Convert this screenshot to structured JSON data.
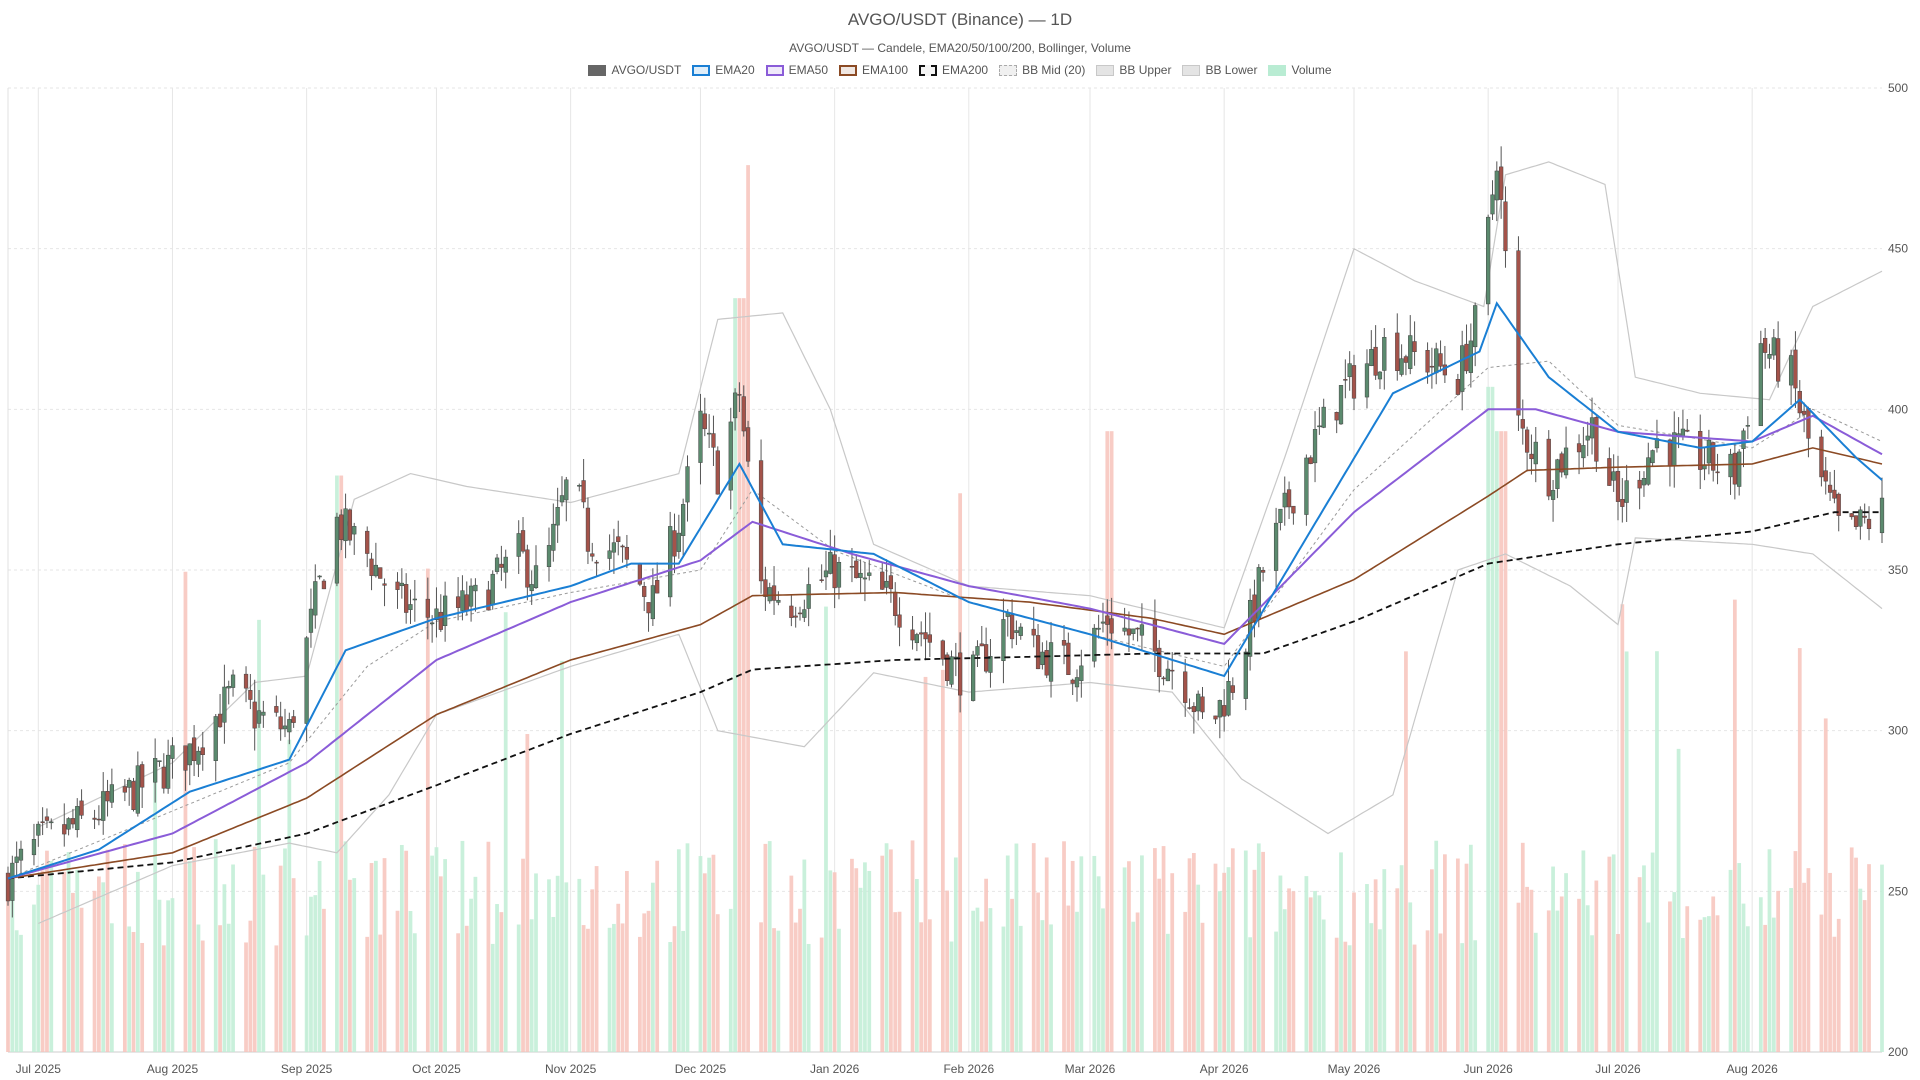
{
  "chart_data": {
    "type": "candlestick",
    "title": "AVGO/USDT (Binance) — 1D",
    "subtitle": "AVGO/USDT — Candele, EMA20/50/100/200, Bollinger, Volume",
    "legend": [
      {
        "name": "AVGO/USDT",
        "color": "#666666",
        "style": "fill"
      },
      {
        "name": "EMA20",
        "color": "#1a7fd4",
        "style": "line"
      },
      {
        "name": "EMA50",
        "color": "#8a5cd8",
        "style": "line"
      },
      {
        "name": "EMA100",
        "color": "#8b4a24",
        "style": "line"
      },
      {
        "name": "EMA200",
        "color": "#111111",
        "style": "dashed"
      },
      {
        "name": "BB Mid (20)",
        "color": "#aaaaaa",
        "style": "dotted"
      },
      {
        "name": "BB Upper",
        "color": "#c8c8c8",
        "style": "light"
      },
      {
        "name": "BB Lower",
        "color": "#c8c8c8",
        "style": "light"
      },
      {
        "name": "Volume",
        "color": "#b9ecd3",
        "style": "fill"
      }
    ],
    "y_axis": {
      "min": 200,
      "max": 500,
      "ticks": [
        200,
        250,
        300,
        350,
        400,
        450,
        500
      ],
      "position": "right"
    },
    "x_axis": {
      "start": "2025-06-24",
      "end": "2026-08-31",
      "ticks": [
        {
          "label": "Jul 2025",
          "date": "2025-07-01"
        },
        {
          "label": "Aug 2025",
          "date": "2025-08-01"
        },
        {
          "label": "Sep 2025",
          "date": "2025-09-01"
        },
        {
          "label": "Oct 2025",
          "date": "2025-10-01"
        },
        {
          "label": "Nov 2025",
          "date": "2025-11-01"
        },
        {
          "label": "Dec 2025",
          "date": "2025-12-01"
        },
        {
          "label": "Jan 2026",
          "date": "2026-01-01"
        },
        {
          "label": "Feb 2026",
          "date": "2026-02-01"
        },
        {
          "label": "Mar 2026",
          "date": "2026-03-01"
        },
        {
          "label": "Apr 2026",
          "date": "2026-04-01"
        },
        {
          "label": "May 2026",
          "date": "2026-05-01"
        },
        {
          "label": "Jun 2026",
          "date": "2026-06-01"
        },
        {
          "label": "Jul 2026",
          "date": "2026-07-01"
        },
        {
          "label": "Aug 2026",
          "date": "2026-08-01"
        }
      ]
    },
    "grid": true,
    "price_keypoints": [
      [
        "2025-06-24",
        254
      ],
      [
        "2025-07-01",
        265
      ],
      [
        "2025-07-12",
        272
      ],
      [
        "2025-07-25",
        283
      ],
      [
        "2025-08-06",
        295
      ],
      [
        "2025-08-15",
        312
      ],
      [
        "2025-08-20",
        305
      ],
      [
        "2025-08-28",
        300
      ],
      [
        "2025-09-03",
        340
      ],
      [
        "2025-09-08",
        365
      ],
      [
        "2025-09-15",
        355
      ],
      [
        "2025-09-22",
        340
      ],
      [
        "2025-10-01",
        335
      ],
      [
        "2025-10-10",
        340
      ],
      [
        "2025-10-20",
        355
      ],
      [
        "2025-10-25",
        345
      ],
      [
        "2025-11-01",
        380
      ],
      [
        "2025-11-05",
        360
      ],
      [
        "2025-11-12",
        355
      ],
      [
        "2025-11-20",
        340
      ],
      [
        "2025-11-26",
        365
      ],
      [
        "2025-12-01",
        395
      ],
      [
        "2025-12-05",
        380
      ],
      [
        "2025-12-10",
        405
      ],
      [
        "2025-12-15",
        345
      ],
      [
        "2025-12-22",
        340
      ],
      [
        "2026-01-01",
        350
      ],
      [
        "2026-01-08",
        345
      ],
      [
        "2026-01-15",
        340
      ],
      [
        "2026-01-25",
        325
      ],
      [
        "2026-02-01",
        315
      ],
      [
        "2026-02-10",
        335
      ],
      [
        "2026-02-16",
        325
      ],
      [
        "2026-02-25",
        320
      ],
      [
        "2026-03-05",
        335
      ],
      [
        "2026-03-15",
        325
      ],
      [
        "2026-03-22",
        318
      ],
      [
        "2026-03-28",
        300
      ],
      [
        "2026-04-04",
        318
      ],
      [
        "2026-04-10",
        350
      ],
      [
        "2026-04-20",
        385
      ],
      [
        "2026-04-28",
        405
      ],
      [
        "2026-05-08",
        420
      ],
      [
        "2026-05-18",
        415
      ],
      [
        "2026-05-25",
        410
      ],
      [
        "2026-05-30",
        430
      ],
      [
        "2026-06-03",
        480
      ],
      [
        "2026-06-08",
        395
      ],
      [
        "2026-06-15",
        380
      ],
      [
        "2026-06-25",
        395
      ],
      [
        "2026-07-01",
        370
      ],
      [
        "2026-07-10",
        390
      ],
      [
        "2026-07-20",
        385
      ],
      [
        "2026-07-28",
        380
      ],
      [
        "2026-08-03",
        420
      ],
      [
        "2026-08-10",
        410
      ],
      [
        "2026-08-16",
        380
      ],
      [
        "2026-08-22",
        360
      ],
      [
        "2026-08-31",
        368
      ]
    ],
    "ema20_keypoints": [
      [
        "2025-06-24",
        254
      ],
      [
        "2025-07-15",
        263
      ],
      [
        "2025-08-05",
        281
      ],
      [
        "2025-08-28",
        291
      ],
      [
        "2025-09-10",
        325
      ],
      [
        "2025-10-01",
        335
      ],
      [
        "2025-11-01",
        345
      ],
      [
        "2025-11-15",
        352
      ],
      [
        "2025-11-26",
        352
      ],
      [
        "2025-12-10",
        383
      ],
      [
        "2025-12-20",
        358
      ],
      [
        "2026-01-10",
        355
      ],
      [
        "2026-02-01",
        340
      ],
      [
        "2026-03-01",
        330
      ],
      [
        "2026-04-01",
        317
      ],
      [
        "2026-04-20",
        360
      ],
      [
        "2026-05-10",
        405
      ],
      [
        "2026-05-30",
        418
      ],
      [
        "2026-06-03",
        433
      ],
      [
        "2026-06-15",
        410
      ],
      [
        "2026-07-01",
        393
      ],
      [
        "2026-07-20",
        388
      ],
      [
        "2026-08-01",
        390
      ],
      [
        "2026-08-12",
        403
      ],
      [
        "2026-08-25",
        385
      ],
      [
        "2026-08-31",
        378
      ]
    ],
    "ema50_keypoints": [
      [
        "2025-06-24",
        254
      ],
      [
        "2025-08-01",
        268
      ],
      [
        "2025-09-01",
        290
      ],
      [
        "2025-10-01",
        322
      ],
      [
        "2025-11-01",
        340
      ],
      [
        "2025-12-01",
        353
      ],
      [
        "2025-12-13",
        365
      ],
      [
        "2026-01-05",
        355
      ],
      [
        "2026-02-01",
        345
      ],
      [
        "2026-03-01",
        338
      ],
      [
        "2026-04-01",
        327
      ],
      [
        "2026-05-01",
        368
      ],
      [
        "2026-06-01",
        400
      ],
      [
        "2026-06-12",
        400
      ],
      [
        "2026-07-01",
        393
      ],
      [
        "2026-08-01",
        390
      ],
      [
        "2026-08-15",
        398
      ],
      [
        "2026-08-31",
        386
      ]
    ],
    "ema100_keypoints": [
      [
        "2025-06-24",
        254
      ],
      [
        "2025-08-01",
        262
      ],
      [
        "2025-09-01",
        279
      ],
      [
        "2025-10-01",
        305
      ],
      [
        "2025-11-01",
        322
      ],
      [
        "2025-12-01",
        333
      ],
      [
        "2025-12-13",
        342
      ],
      [
        "2026-01-15",
        343
      ],
      [
        "2026-02-15",
        340
      ],
      [
        "2026-03-15",
        335
      ],
      [
        "2026-04-01",
        330
      ],
      [
        "2026-05-01",
        347
      ],
      [
        "2026-06-01",
        373
      ],
      [
        "2026-06-10",
        381
      ],
      [
        "2026-07-01",
        382
      ],
      [
        "2026-08-01",
        383
      ],
      [
        "2026-08-15",
        388
      ],
      [
        "2026-08-31",
        383
      ]
    ],
    "ema200_keypoints": [
      [
        "2025-06-24",
        254
      ],
      [
        "2025-08-01",
        259
      ],
      [
        "2025-09-01",
        268
      ],
      [
        "2025-10-01",
        283
      ],
      [
        "2025-11-01",
        299
      ],
      [
        "2025-12-01",
        312
      ],
      [
        "2025-12-13",
        319
      ],
      [
        "2026-01-15",
        322
      ],
      [
        "2026-02-15",
        323
      ],
      [
        "2026-03-15",
        324
      ],
      [
        "2026-04-10",
        324
      ],
      [
        "2026-05-01",
        334
      ],
      [
        "2026-06-01",
        352
      ],
      [
        "2026-07-01",
        358
      ],
      [
        "2026-08-01",
        362
      ],
      [
        "2026-08-20",
        368
      ],
      [
        "2026-08-31",
        368
      ]
    ],
    "bb_mid_keypoints": [
      [
        "2025-06-24",
        254
      ],
      [
        "2025-08-01",
        275
      ],
      [
        "2025-08-28",
        290
      ],
      [
        "2025-09-15",
        320
      ],
      [
        "2025-10-01",
        334
      ],
      [
        "2025-11-01",
        343
      ],
      [
        "2025-12-01",
        350
      ],
      [
        "2025-12-13",
        375
      ],
      [
        "2026-01-01",
        356
      ],
      [
        "2026-02-01",
        340
      ],
      [
        "2026-03-01",
        330
      ],
      [
        "2026-04-01",
        320
      ],
      [
        "2026-05-01",
        375
      ],
      [
        "2026-06-01",
        413
      ],
      [
        "2026-06-15",
        415
      ],
      [
        "2026-07-01",
        395
      ],
      [
        "2026-08-01",
        388
      ],
      [
        "2026-08-15",
        400
      ],
      [
        "2026-08-31",
        390
      ]
    ],
    "bb_upper_keypoints": [
      [
        "2025-07-01",
        270
      ],
      [
        "2025-08-01",
        290
      ],
      [
        "2025-08-20",
        315
      ],
      [
        "2025-09-01",
        317
      ],
      [
        "2025-09-12",
        372
      ],
      [
        "2025-09-25",
        380
      ],
      [
        "2025-10-08",
        376
      ],
      [
        "2025-11-01",
        371
      ],
      [
        "2025-11-26",
        380
      ],
      [
        "2025-12-05",
        428
      ],
      [
        "2025-12-20",
        430
      ],
      [
        "2025-12-31",
        400
      ],
      [
        "2026-01-10",
        358
      ],
      [
        "2026-02-01",
        345
      ],
      [
        "2026-03-01",
        342
      ],
      [
        "2026-04-01",
        332
      ],
      [
        "2026-04-15",
        385
      ],
      [
        "2026-05-01",
        450
      ],
      [
        "2026-05-15",
        440
      ],
      [
        "2026-05-31",
        432
      ],
      [
        "2026-06-05",
        473
      ],
      [
        "2026-06-15",
        477
      ],
      [
        "2026-06-28",
        470
      ],
      [
        "2026-07-05",
        410
      ],
      [
        "2026-07-20",
        405
      ],
      [
        "2026-08-05",
        403
      ],
      [
        "2026-08-15",
        432
      ],
      [
        "2026-08-31",
        443
      ]
    ],
    "bb_lower_keypoints": [
      [
        "2025-07-01",
        240
      ],
      [
        "2025-08-01",
        258
      ],
      [
        "2025-08-28",
        265
      ],
      [
        "2025-09-08",
        262
      ],
      [
        "2025-09-20",
        280
      ],
      [
        "2025-10-01",
        305
      ],
      [
        "2025-11-01",
        320
      ],
      [
        "2025-11-26",
        330
      ],
      [
        "2025-12-05",
        300
      ],
      [
        "2025-12-25",
        295
      ],
      [
        "2026-01-10",
        318
      ],
      [
        "2026-02-01",
        312
      ],
      [
        "2026-03-01",
        315
      ],
      [
        "2026-03-20",
        312
      ],
      [
        "2026-04-05",
        285
      ],
      [
        "2026-04-25",
        268
      ],
      [
        "2026-05-10",
        280
      ],
      [
        "2026-05-25",
        350
      ],
      [
        "2026-06-05",
        355
      ],
      [
        "2026-06-20",
        345
      ],
      [
        "2026-07-01",
        333
      ],
      [
        "2026-07-05",
        360
      ],
      [
        "2026-08-01",
        358
      ],
      [
        "2026-08-15",
        355
      ],
      [
        "2026-08-31",
        338
      ]
    ],
    "volume_spikes": [
      [
        "2025-12-13",
        1.0
      ],
      [
        "2025-12-10",
        0.85
      ],
      [
        "2026-06-01",
        0.75
      ],
      [
        "2026-06-04",
        0.7
      ],
      [
        "2026-03-06",
        0.7
      ],
      [
        "2025-09-08",
        0.65
      ],
      [
        "2026-01-31",
        0.63
      ],
      [
        "2026-07-04",
        0.6
      ]
    ],
    "colors": {
      "up": "#5b8a6e",
      "down": "#a4534a",
      "vol_up": "#bfedd5",
      "vol_down": "#f7c3bb",
      "grid": "#e6e6e6"
    }
  }
}
